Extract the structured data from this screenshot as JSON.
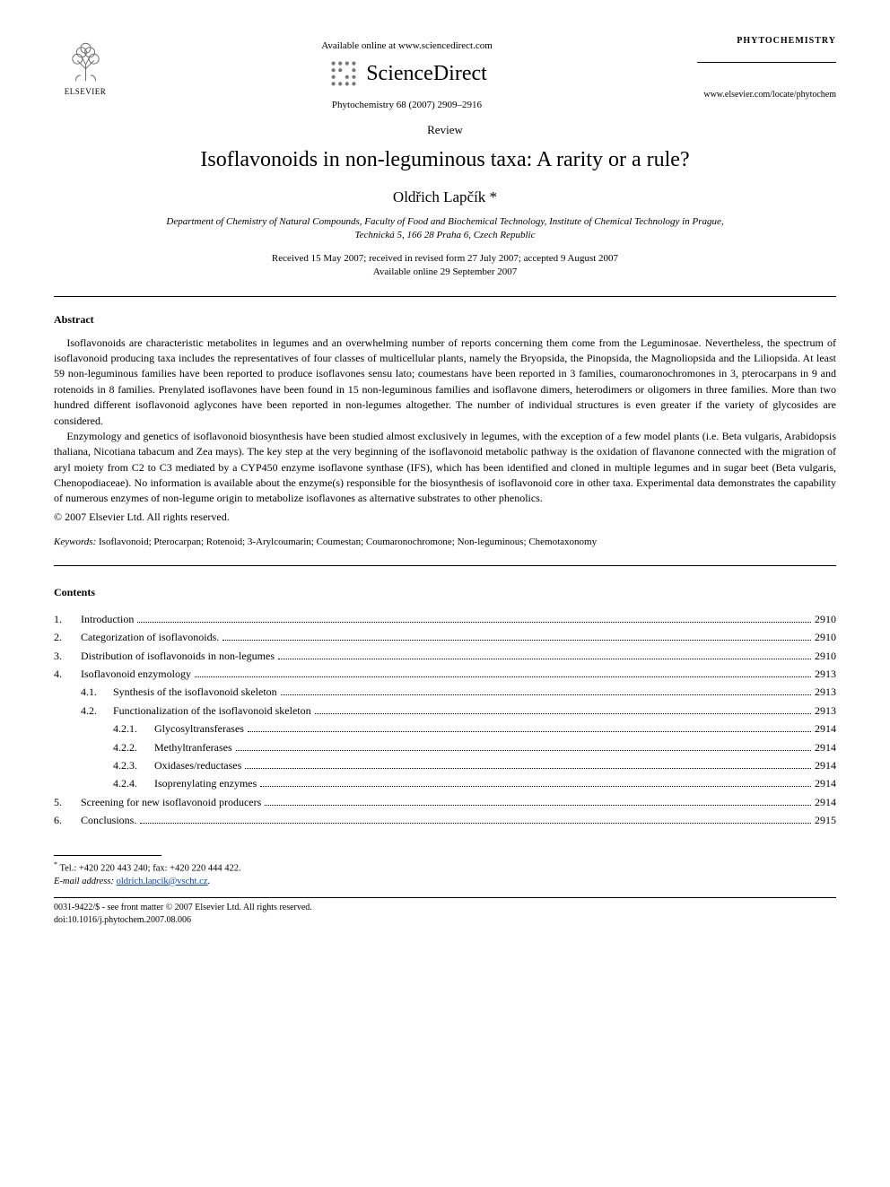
{
  "header": {
    "publisher": "ELSEVIER",
    "available_line": "Available online at www.sciencedirect.com",
    "platform": "ScienceDirect",
    "citation": "Phytochemistry 68 (2007) 2909–2916",
    "journal_display": "PHYTOCHEMISTRY",
    "journal_url": "www.elsevier.com/locate/phytochem"
  },
  "article": {
    "type": "Review",
    "title": "Isoflavonoids in non-leguminous taxa: A rarity or a rule?",
    "author": "Oldřich Lapčík *",
    "affiliation_line1": "Department of Chemistry of Natural Compounds, Faculty of Food and Biochemical Technology, Institute of Chemical Technology in Prague,",
    "affiliation_line2": "Technická 5, 166 28 Praha 6, Czech Republic",
    "dates_line1": "Received 15 May 2007; received in revised form 27 July 2007; accepted 9 August 2007",
    "dates_line2": "Available online 29 September 2007"
  },
  "abstract": {
    "label": "Abstract",
    "para1": "Isoflavonoids are characteristic metabolites in legumes and an overwhelming number of reports concerning them come from the Leguminosae. Nevertheless, the spectrum of isoflavonoid producing taxa includes the representatives of four classes of multicellular plants, namely the Bryopsida, the Pinopsida, the Magnoliopsida and the Liliopsida. At least 59 non-leguminous families have been reported to produce isoflavones sensu lato; coumestans have been reported in 3 families, coumaronochromones in 3, pterocarpans in 9 and rotenoids in 8 families. Prenylated isoflavones have been found in 15 non-leguminous families and isoflavone dimers, heterodimers or oligomers in three families. More than two hundred different isoflavonoid aglycones have been reported in non-legumes altogether. The number of individual structures is even greater if the variety of glycosides are considered.",
    "para2": "Enzymology and genetics of isoflavonoid biosynthesis have been studied almost exclusively in legumes, with the exception of a few model plants (i.e. Beta vulgaris, Arabidopsis thaliana, Nicotiana tabacum and Zea mays). The key step at the very beginning of the isoflavonoid metabolic pathway is the oxidation of flavanone connected with the migration of aryl moiety from C2 to C3 mediated by a CYP450 enzyme isoflavone synthase (IFS), which has been identified and cloned in multiple legumes and in sugar beet (Beta vulgaris, Chenopodiaceae). No information is available about the enzyme(s) responsible for the biosynthesis of isoflavonoid core in other taxa. Experimental data demonstrates the capability of numerous enzymes of non-legume origin to metabolize isoflavones as alternative substrates to other phenolics.",
    "copyright": "© 2007 Elsevier Ltd. All rights reserved."
  },
  "keywords": {
    "label": "Keywords:",
    "text": "Isoflavonoid; Pterocarpan; Rotenoid; 3-Arylcoumarin; Coumestan; Coumaronochromone; Non-leguminous; Chemotaxonomy"
  },
  "contents": {
    "label": "Contents",
    "items": [
      {
        "num": "1.",
        "title": "Introduction",
        "page": "2910",
        "level": 0
      },
      {
        "num": "2.",
        "title": "Categorization of isoflavonoids.",
        "page": "2910",
        "level": 0
      },
      {
        "num": "3.",
        "title": "Distribution of isoflavonoids in non-legumes",
        "page": "2910",
        "level": 0
      },
      {
        "num": "4.",
        "title": "Isoflavonoid enzymology",
        "page": "2913",
        "level": 0
      },
      {
        "num": "4.1.",
        "title": "Synthesis of the isoflavonoid skeleton",
        "page": "2913",
        "level": 1
      },
      {
        "num": "4.2.",
        "title": "Functionalization of the isoflavonoid skeleton",
        "page": "2913",
        "level": 1
      },
      {
        "num": "4.2.1.",
        "title": "Glycosyltransferases",
        "page": "2914",
        "level": 2
      },
      {
        "num": "4.2.2.",
        "title": "Methyltranferases",
        "page": "2914",
        "level": 2
      },
      {
        "num": "4.2.3.",
        "title": "Oxidases/reductases",
        "page": "2914",
        "level": 2
      },
      {
        "num": "4.2.4.",
        "title": "Isoprenylating enzymes",
        "page": "2914",
        "level": 2
      },
      {
        "num": "5.",
        "title": "Screening for new isoflavonoid producers",
        "page": "2914",
        "level": 0
      },
      {
        "num": "6.",
        "title": "Conclusions.",
        "page": "2915",
        "level": 0
      }
    ]
  },
  "footnotes": {
    "contact": "Tel.: +420 220 443 240; fax: +420 220 444 422.",
    "email_label": "E-mail address:",
    "email": "oldrich.lapcik@vscht.cz",
    "email_suffix": "."
  },
  "footer": {
    "line1": "0031-9422/$ - see front matter © 2007 Elsevier Ltd. All rights reserved.",
    "line2": "doi:10.1016/j.phytochem.2007.08.006"
  }
}
